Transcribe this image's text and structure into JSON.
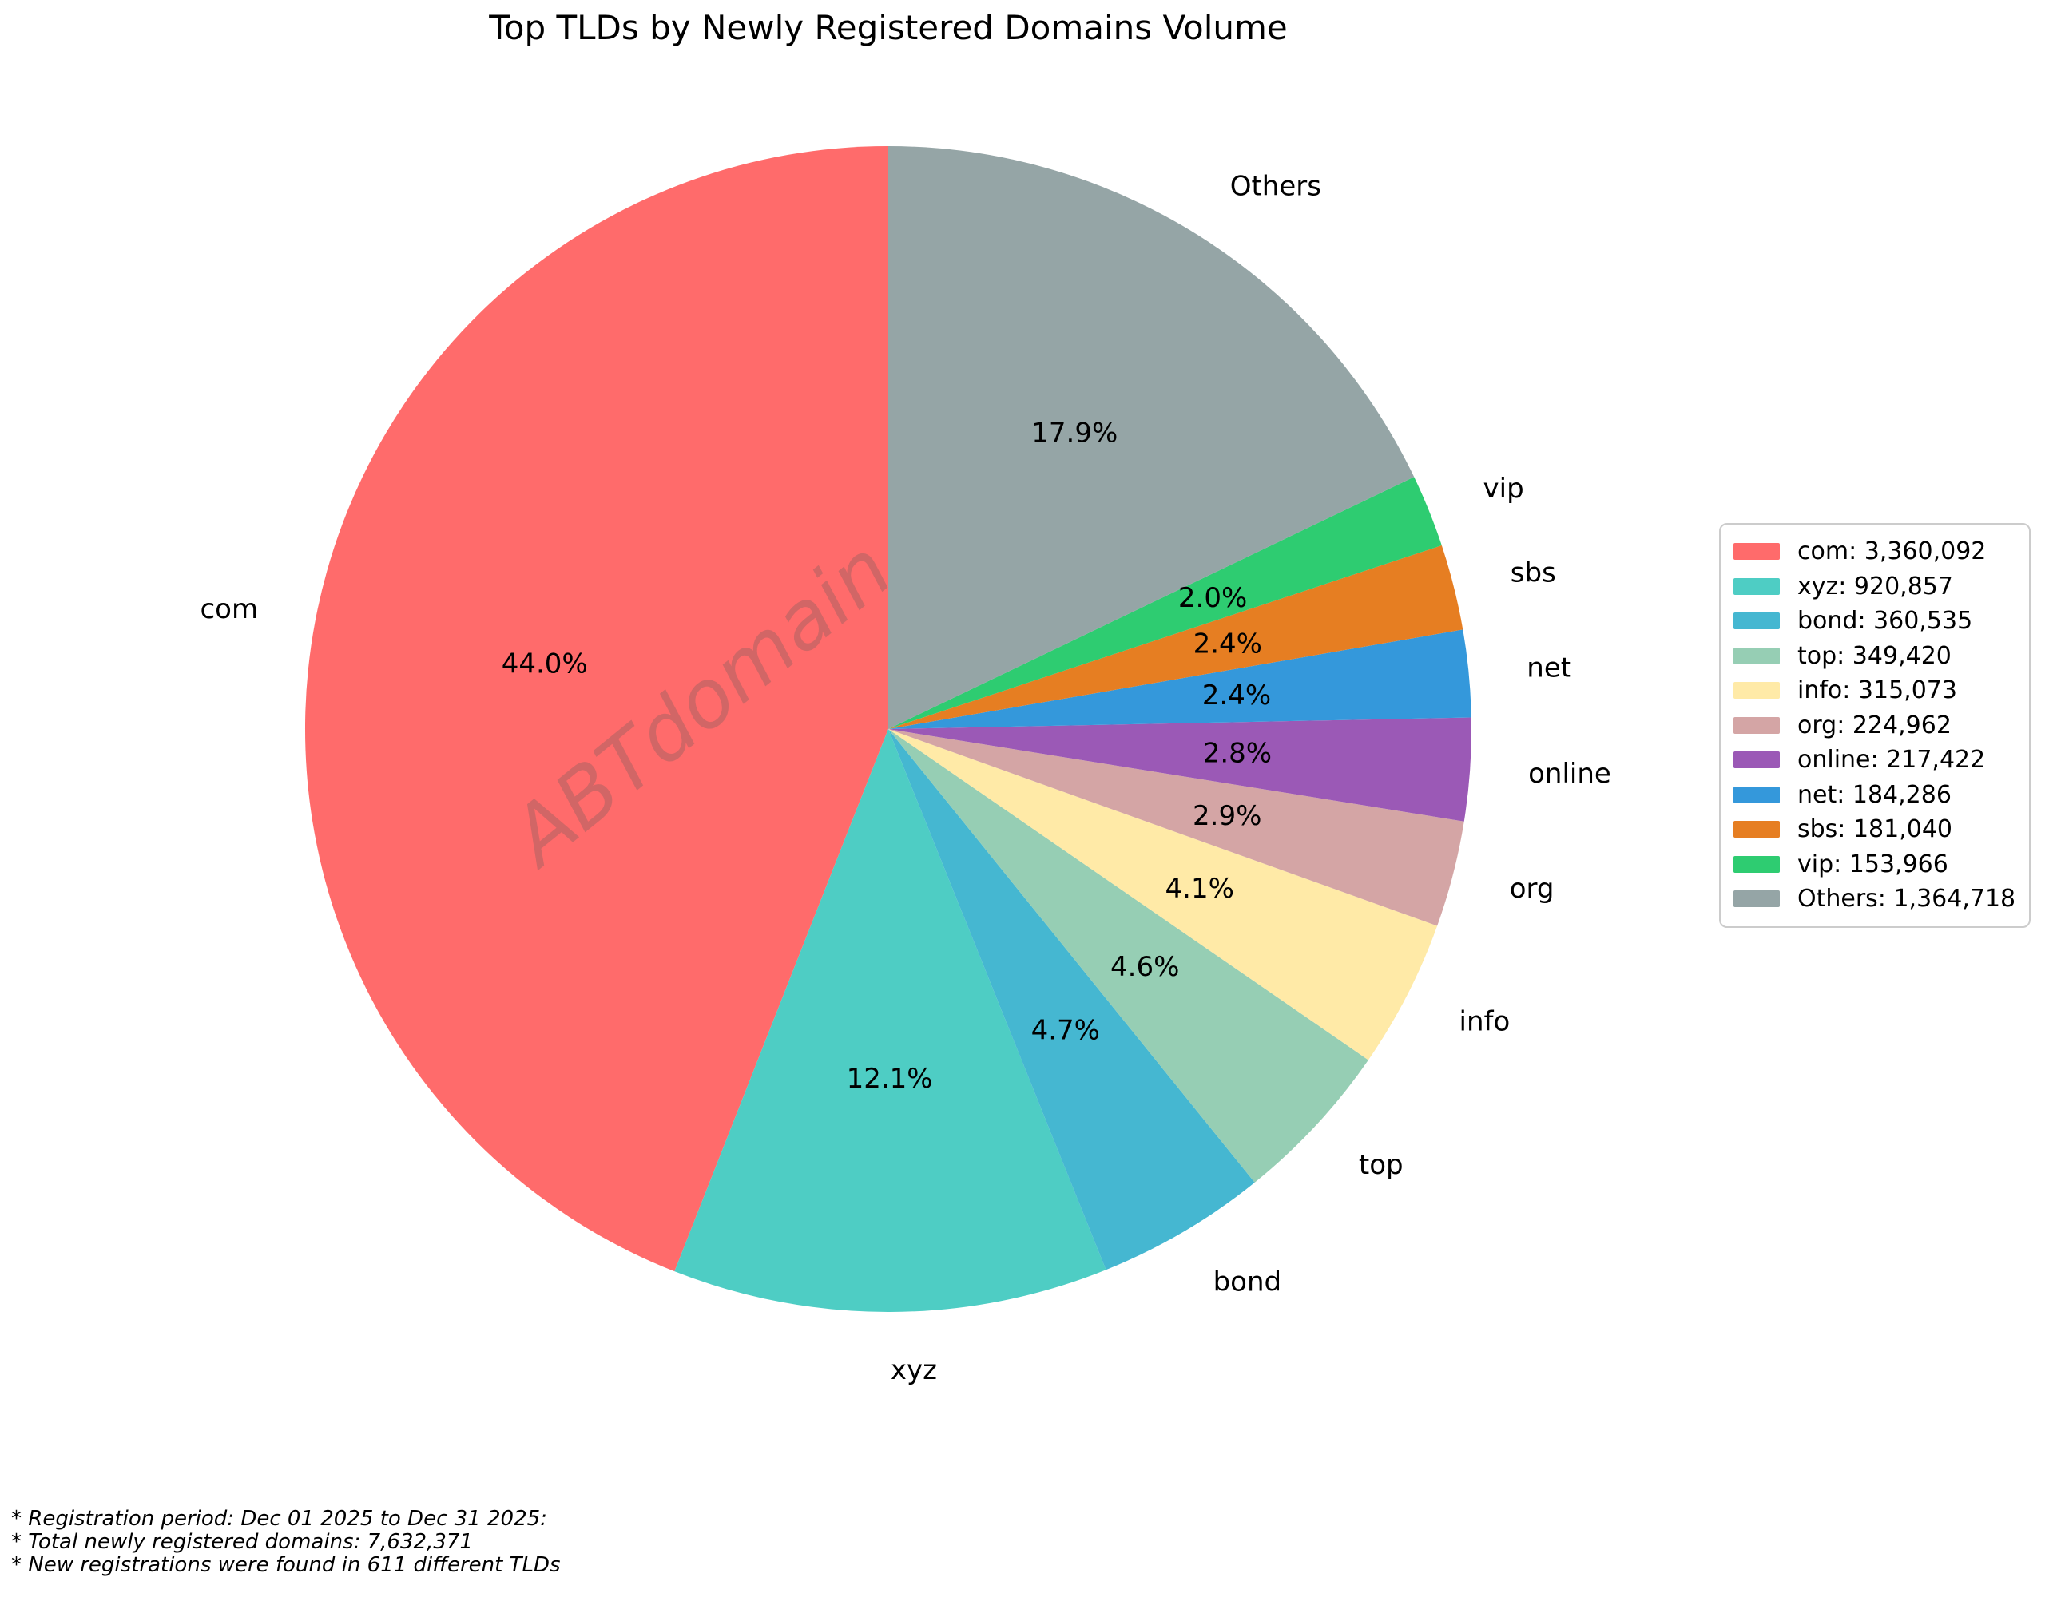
{
  "title": "Top TLDs by Newly Registered Domains Volume",
  "watermark": "ABTdomain",
  "footnotes": [
    "* Registration period: Dec 01 2025 to Dec 31 2025:",
    "* Total newly registered domains: 7,632,371",
    "* New registrations were found in 611 different TLDs"
  ],
  "chart_data": {
    "type": "pie",
    "title": "Top TLDs by Newly Registered Domains Volume",
    "categories": [
      "com",
      "xyz",
      "bond",
      "top",
      "info",
      "org",
      "online",
      "net",
      "sbs",
      "vip",
      "Others"
    ],
    "values": [
      3360092,
      920857,
      360535,
      349420,
      315073,
      224962,
      217422,
      184286,
      181040,
      153966,
      1364718
    ],
    "percent_labels": [
      "44.0%",
      "12.1%",
      "4.7%",
      "4.6%",
      "4.1%",
      "2.9%",
      "2.8%",
      "2.4%",
      "2.4%",
      "2.0%",
      "17.9%"
    ],
    "colors": [
      "#FF6B6B",
      "#4ECDC4",
      "#45B7D1",
      "#96CEB4",
      "#FFEAA7",
      "#D4A5A5",
      "#9B59B6",
      "#3498DB",
      "#E67E22",
      "#2ECC71",
      "#95A5A6"
    ],
    "legend_entries": [
      "com: 3,360,092",
      "xyz: 920,857",
      "bond: 360,535",
      "top: 349,420",
      "info: 315,073",
      "org: 224,962",
      "online: 217,422",
      "net: 184,286",
      "sbs: 181,040",
      "vip: 153,966",
      "Others: 1,364,718"
    ],
    "total": 7632371,
    "start_angle": 90,
    "counterclock": true,
    "legend_position": "center right",
    "grid": false
  }
}
